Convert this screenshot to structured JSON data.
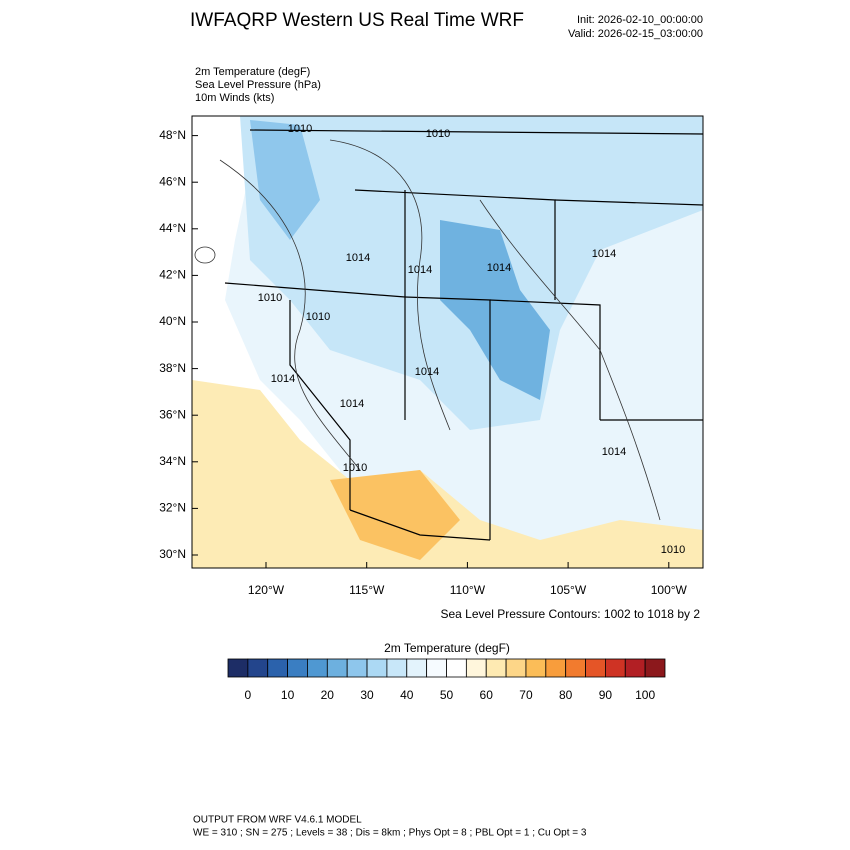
{
  "header": {
    "title": "IWFAQRP Western US Real Time WRF",
    "init": "Init: 2026-02-10_00:00:00",
    "valid": "Valid: 2026-02-15_03:00:00"
  },
  "fields": [
    "2m Temperature   (degF)",
    "Sea Level Pressure   (hPa)",
    "10m Winds   (kts)"
  ],
  "map": {
    "lat_labels": [
      "30°N",
      "32°N",
      "34°N",
      "36°N",
      "38°N",
      "40°N",
      "42°N",
      "44°N",
      "46°N",
      "48°N"
    ],
    "lon_labels": [
      "120°W",
      "115°W",
      "110°W",
      "105°W",
      "100°W"
    ],
    "contour_labels": [
      "1010",
      "1010",
      "1010",
      "1014",
      "1014",
      "1014",
      "1010",
      "1010",
      "1014",
      "1014",
      "1014",
      "1014",
      "1014",
      "1010"
    ],
    "contour_note": "Sea Level Pressure Contours: 1002 to 1018 by 2"
  },
  "colorbar": {
    "title": "2m Temperature  (degF)",
    "ticks": [
      0,
      10,
      20,
      30,
      40,
      50,
      60,
      70,
      80,
      90,
      100
    ],
    "colors": [
      "#1d2d66",
      "#23458c",
      "#2b62ac",
      "#3a7ec2",
      "#4f98d2",
      "#6db0df",
      "#8ec6ec",
      "#acd9f4",
      "#c8e7f9",
      "#e3f3fc",
      "#f6fbff",
      "#ffffff",
      "#fff6dc",
      "#feeab2",
      "#fdd688",
      "#fbbd58",
      "#f89d3c",
      "#f27b2e",
      "#e55527",
      "#cf3324",
      "#b21f24",
      "#8c181c"
    ]
  },
  "footer": {
    "line1": "OUTPUT FROM WRF V4.6.1 MODEL",
    "line2": "WE = 310 ; SN = 275 ; Levels = 38 ; Dis = 8km ; Phys Opt = 8 ; PBL Opt = 1 ; Cu Opt = 3"
  }
}
